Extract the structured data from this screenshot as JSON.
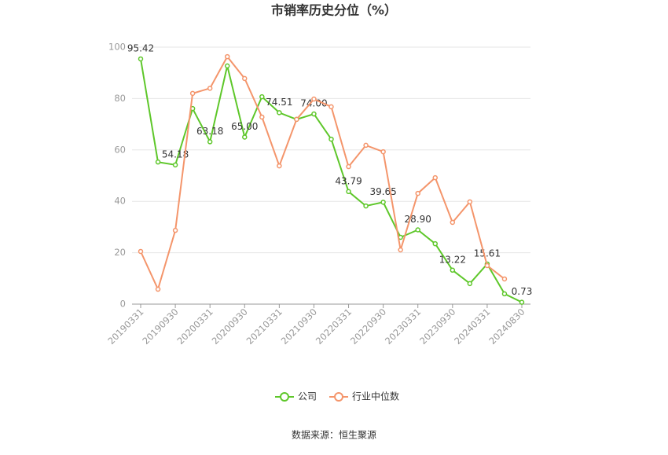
{
  "chart_data": {
    "type": "line",
    "title": "市销率历史分位（%）",
    "source": "数据来源：恒生聚源",
    "categories": [
      "20190331",
      null,
      "20190930",
      null,
      "20200331",
      null,
      "20200930",
      null,
      "20210331",
      null,
      "20210930",
      null,
      "20220331",
      null,
      "20220930",
      null,
      "20230331",
      null,
      "20230930",
      null,
      "20240331",
      null,
      "20240830"
    ],
    "series": [
      {
        "name": "公司",
        "color": "#5ec72a",
        "values": [
          95.42,
          55.3,
          54.18,
          76.1,
          63.18,
          92.7,
          65.0,
          80.7,
          74.51,
          71.9,
          74.0,
          64.2,
          43.79,
          38.2,
          39.65,
          26.0,
          28.9,
          23.5,
          13.22,
          8.0,
          15.61,
          4.0,
          0.73
        ],
        "value_labels": [
          "95.42",
          null,
          "54.18",
          null,
          "63.18",
          null,
          "65.00",
          null,
          "74.51",
          null,
          "74.00",
          null,
          "43.79",
          null,
          "39.65",
          null,
          "28.90",
          null,
          "13.22",
          null,
          "15.61",
          null,
          "0.73"
        ]
      },
      {
        "name": "行业中位数",
        "color": "#f4956b",
        "values": [
          20.5,
          5.8,
          28.7,
          82.0,
          84.0,
          96.3,
          87.8,
          72.8,
          53.8,
          71.9,
          79.8,
          76.8,
          53.5,
          61.8,
          59.3,
          21.1,
          43.1,
          49.2,
          31.8,
          39.8,
          15.0,
          9.8,
          null
        ]
      }
    ],
    "ylim": [
      0,
      100
    ],
    "yticks": [
      0,
      20,
      40,
      60,
      80,
      100
    ],
    "grid": true,
    "legend": "bottom"
  }
}
